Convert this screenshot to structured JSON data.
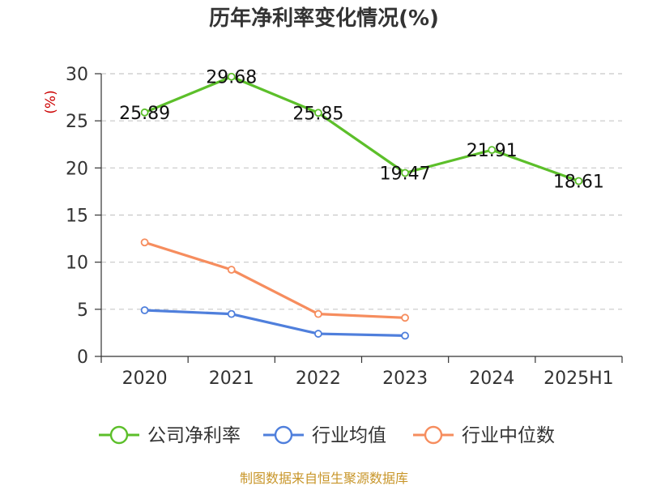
{
  "chart_data": {
    "type": "line",
    "title": "历年净利率变化情况(%)",
    "ylabel": "(%)",
    "xlabel": "",
    "categories": [
      "2020",
      "2021",
      "2022",
      "2023",
      "2024",
      "2025H1"
    ],
    "ylim": [
      0,
      30
    ],
    "yticks": [
      0,
      5,
      10,
      15,
      20,
      25,
      30
    ],
    "grid": true,
    "legend_position": "bottom",
    "series": [
      {
        "name": "公司净利率",
        "color": "#5cbf2a",
        "values": [
          25.89,
          29.68,
          25.85,
          19.47,
          21.91,
          18.61
        ],
        "labels": [
          "25.89",
          "29.68",
          "25.85",
          "19.47",
          "21.91",
          "18.61"
        ]
      },
      {
        "name": "行业均值",
        "color": "#4f7fdc",
        "values": [
          4.9,
          4.5,
          2.4,
          2.2,
          null,
          null
        ]
      },
      {
        "name": "行业中位数",
        "color": "#f68d5e",
        "values": [
          12.1,
          9.2,
          4.5,
          4.1,
          null,
          null
        ]
      }
    ],
    "source": "制图数据来自恒生聚源数据库"
  }
}
